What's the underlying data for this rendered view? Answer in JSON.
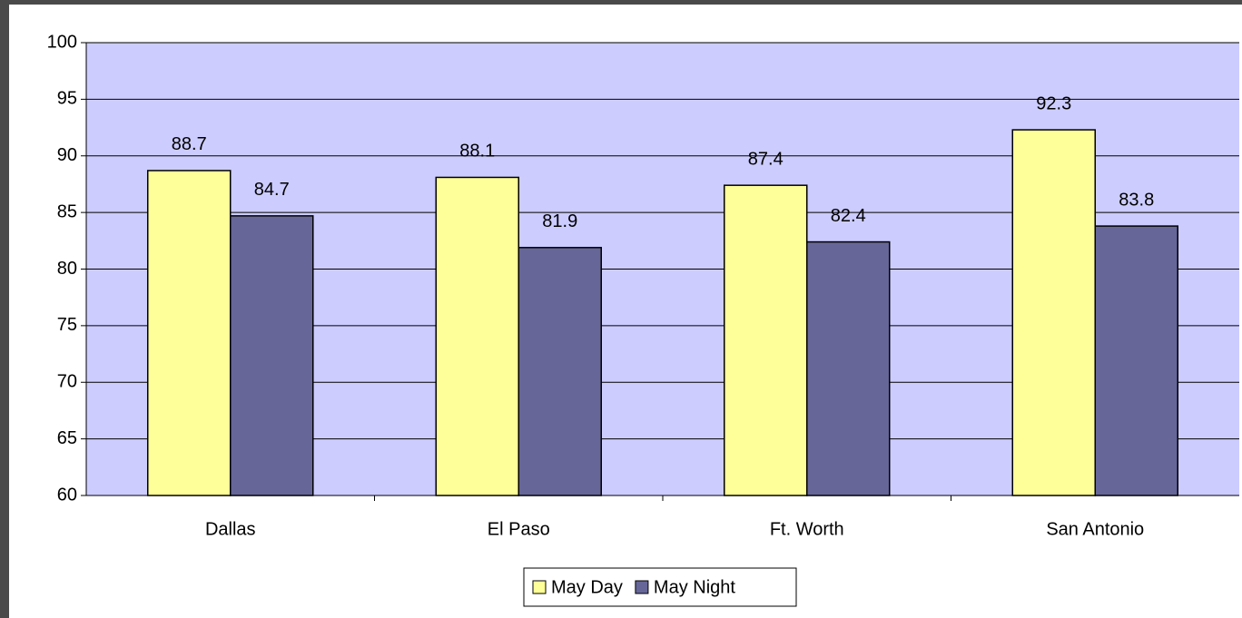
{
  "chart_data": {
    "type": "bar",
    "categories": [
      "Dallas",
      "El Paso",
      "Ft. Worth",
      "San Antonio"
    ],
    "series": [
      {
        "name": "May Day",
        "color": "#ffff99",
        "values": [
          88.7,
          88.1,
          87.4,
          92.3
        ]
      },
      {
        "name": "May Night",
        "color": "#666699",
        "values": [
          84.7,
          81.9,
          82.4,
          83.8
        ]
      }
    ],
    "ylim": [
      60,
      100
    ],
    "yticks": [
      60,
      65,
      70,
      75,
      80,
      85,
      90,
      95,
      100
    ],
    "grid": true,
    "plot_background": "#ccccff",
    "legend": "bottom"
  }
}
